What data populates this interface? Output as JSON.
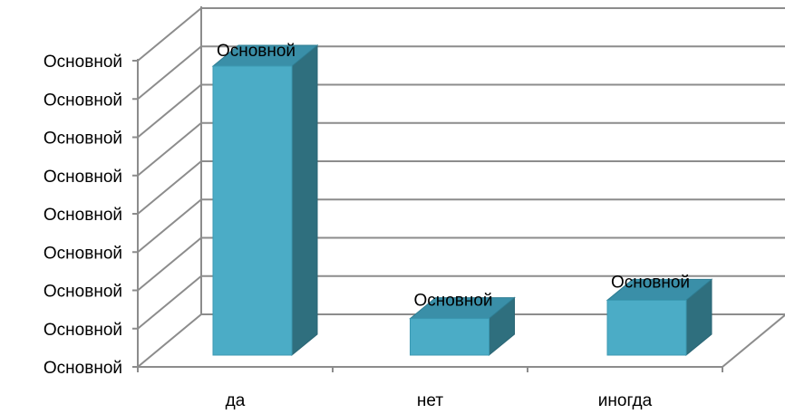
{
  "chart_data": {
    "type": "bar",
    "style": "3d-column",
    "categories": [
      "да",
      "нет",
      "иногда"
    ],
    "values": [
      0.79,
      0.1,
      0.15
    ],
    "ylim": [
      0,
      0.8
    ],
    "yticks": [
      0,
      0.1,
      0.2,
      0.3,
      0.4,
      0.5,
      0.6,
      0.7,
      0.8
    ],
    "ytick_labels": [
      "Основной",
      "Основной",
      "Основной",
      "Основной",
      "Основной",
      "Основной",
      "Основной",
      "Основной",
      "Основной"
    ],
    "data_labels": [
      "Основной",
      "Основной",
      "Основной"
    ],
    "grid": true,
    "legend": "none",
    "colors": {
      "bar_front": "#4BACC6",
      "bar_top": "#3A8FA8",
      "bar_side": "#2F6F7E",
      "grid": "#8C8C8C"
    }
  }
}
